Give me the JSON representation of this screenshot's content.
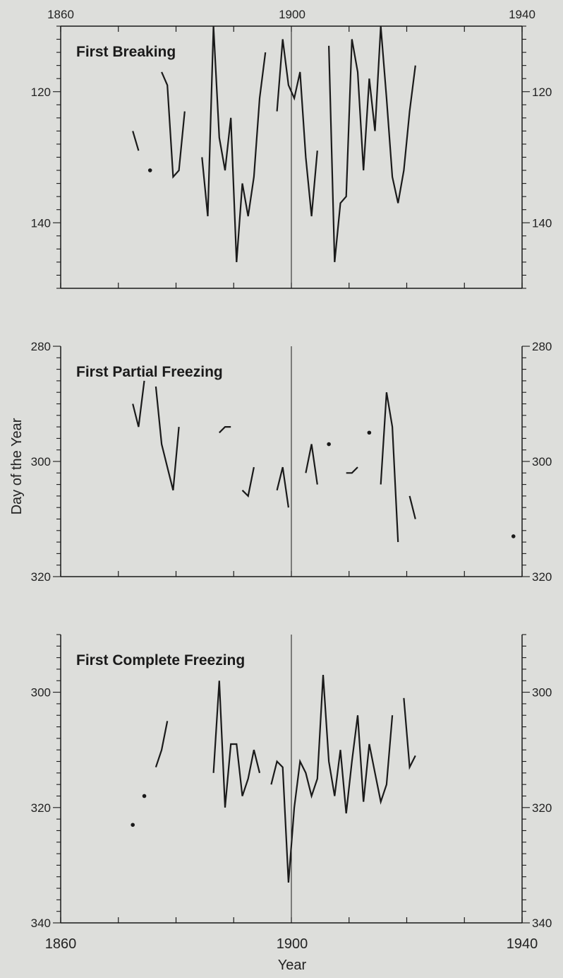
{
  "colors": {
    "background": "#dddedb",
    "ink": "#1a1a1a"
  },
  "top_year_labels": [
    "1860",
    "1900",
    "1940"
  ],
  "bottom_year_labels": [
    "1860",
    "1900",
    "1940"
  ],
  "x_axis_label": "Year",
  "y_axis_label": "Day of the Year",
  "chart_data": [
    {
      "type": "line",
      "title": "First Breaking",
      "xlim": [
        1860,
        1940
      ],
      "ylim": [
        150,
        110
      ],
      "y_inverted": true,
      "grid": false,
      "reference_line_x": 1900,
      "y_ticks_labeled": [
        120,
        140
      ],
      "has_top_axis": true,
      "has_bottom_axis": true,
      "has_left_axis": true,
      "has_right_axis": true,
      "segments": [
        [
          [
            1872.5,
            126
          ],
          [
            1873.5,
            129
          ]
        ],
        [
          [
            1875.5,
            132
          ]
        ],
        [
          [
            1877.5,
            117
          ],
          [
            1878.5,
            119
          ],
          [
            1879.5,
            133
          ],
          [
            1880.5,
            132
          ],
          [
            1881.5,
            123
          ]
        ],
        [
          [
            1884.5,
            130
          ],
          [
            1885.5,
            139
          ],
          [
            1886.5,
            110
          ],
          [
            1887.5,
            127
          ],
          [
            1888.5,
            132
          ],
          [
            1889.5,
            124
          ],
          [
            1890.5,
            146
          ],
          [
            1891.5,
            134
          ],
          [
            1892.5,
            139
          ],
          [
            1893.5,
            133
          ],
          [
            1894.5,
            121
          ],
          [
            1895.5,
            114
          ]
        ],
        [
          [
            1897.5,
            123
          ],
          [
            1898.5,
            112
          ],
          [
            1899.5,
            119
          ],
          [
            1900.5,
            121
          ],
          [
            1901.5,
            117
          ],
          [
            1902.5,
            130
          ],
          [
            1903.5,
            139
          ],
          [
            1904.5,
            129
          ]
        ],
        [
          [
            1906.5,
            113
          ],
          [
            1907.5,
            146
          ],
          [
            1908.5,
            137
          ],
          [
            1909.5,
            136
          ],
          [
            1910.5,
            112
          ],
          [
            1911.5,
            117
          ],
          [
            1912.5,
            132
          ],
          [
            1913.5,
            118
          ],
          [
            1914.5,
            126
          ],
          [
            1915.5,
            110
          ],
          [
            1916.5,
            121
          ],
          [
            1917.5,
            133
          ],
          [
            1918.5,
            137
          ],
          [
            1919.5,
            132
          ],
          [
            1920.5,
            123
          ],
          [
            1921.5,
            116
          ]
        ]
      ]
    },
    {
      "type": "line",
      "title": "First Partial Freezing",
      "xlim": [
        1860,
        1940
      ],
      "ylim": [
        280,
        320
      ],
      "y_inverted": false,
      "grid": false,
      "reference_line_x": 1900,
      "y_ticks_labeled": [
        280,
        300,
        320
      ],
      "has_top_axis": false,
      "has_bottom_axis": true,
      "has_left_axis": true,
      "has_right_axis": true,
      "segments": [
        [
          [
            1872.5,
            290
          ],
          [
            1873.5,
            294
          ],
          [
            1874.5,
            286
          ]
        ],
        [
          [
            1876.5,
            287
          ],
          [
            1877.5,
            297
          ],
          [
            1878.5,
            301
          ],
          [
            1879.5,
            305
          ],
          [
            1880.5,
            294
          ]
        ],
        [
          [
            1887.5,
            295
          ],
          [
            1888.5,
            294
          ],
          [
            1889.5,
            294
          ]
        ],
        [
          [
            1891.5,
            305
          ],
          [
            1892.5,
            306
          ],
          [
            1893.5,
            301
          ]
        ],
        [
          [
            1897.5,
            305
          ],
          [
            1898.5,
            301
          ],
          [
            1899.5,
            308
          ]
        ],
        [
          [
            1902.5,
            302
          ],
          [
            1903.5,
            297
          ],
          [
            1904.5,
            304
          ]
        ],
        [
          [
            1906.5,
            297
          ]
        ],
        [
          [
            1909.5,
            302
          ],
          [
            1910.5,
            302
          ],
          [
            1911.5,
            301
          ]
        ],
        [
          [
            1913.5,
            295
          ]
        ],
        [
          [
            1915.5,
            304
          ],
          [
            1916.5,
            288
          ],
          [
            1917.5,
            294
          ],
          [
            1918.5,
            314
          ]
        ],
        [
          [
            1920.5,
            306
          ],
          [
            1921.5,
            310
          ]
        ],
        [
          [
            1938.5,
            313
          ]
        ]
      ]
    },
    {
      "type": "line",
      "title": "First Complete Freezing",
      "xlim": [
        1860,
        1940
      ],
      "ylim": [
        290,
        340
      ],
      "y_inverted": false,
      "grid": false,
      "reference_line_x": 1900,
      "y_ticks_labeled": [
        300,
        320,
        340
      ],
      "has_top_axis": false,
      "has_bottom_axis": true,
      "has_left_axis": true,
      "has_right_axis": true,
      "segments": [
        [
          [
            1872.5,
            323
          ]
        ],
        [
          [
            1874.5,
            318
          ]
        ],
        [
          [
            1876.5,
            313
          ],
          [
            1877.5,
            310
          ],
          [
            1878.5,
            305
          ]
        ],
        [
          [
            1886.5,
            314
          ],
          [
            1887.5,
            298
          ],
          [
            1888.5,
            320
          ],
          [
            1889.5,
            309
          ],
          [
            1890.5,
            309
          ],
          [
            1891.5,
            318
          ],
          [
            1892.5,
            315
          ],
          [
            1893.5,
            310
          ],
          [
            1894.5,
            314
          ]
        ],
        [
          [
            1896.5,
            316
          ],
          [
            1897.5,
            312
          ],
          [
            1898.5,
            313
          ],
          [
            1899.5,
            333
          ],
          [
            1900.5,
            320
          ],
          [
            1901.5,
            312
          ],
          [
            1902.5,
            314
          ],
          [
            1903.5,
            318
          ],
          [
            1904.5,
            315
          ],
          [
            1905.5,
            297
          ],
          [
            1906.5,
            312
          ],
          [
            1907.5,
            318
          ],
          [
            1908.5,
            310
          ],
          [
            1909.5,
            321
          ],
          [
            1910.5,
            312
          ],
          [
            1911.5,
            304
          ],
          [
            1912.5,
            319
          ],
          [
            1913.5,
            309
          ],
          [
            1914.5,
            314
          ],
          [
            1915.5,
            319
          ],
          [
            1916.5,
            316
          ],
          [
            1917.5,
            304
          ]
        ],
        [
          [
            1919.5,
            301
          ],
          [
            1920.5,
            313
          ],
          [
            1921.5,
            311
          ]
        ]
      ]
    }
  ]
}
